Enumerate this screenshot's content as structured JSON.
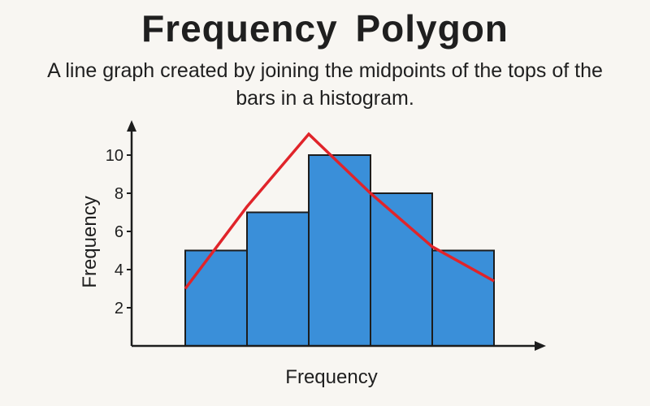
{
  "header": {
    "title": "Frequency  Polygon",
    "subtitle": "A line graph created by joining the midpoints of the tops of the bars in a histogram."
  },
  "chart_data": {
    "type": "bar",
    "title": "Frequency  Polygon",
    "xlabel": "Frequency",
    "ylabel": "Frequency",
    "ylim": [
      0,
      10
    ],
    "yticks": [
      2,
      4,
      6,
      8,
      10
    ],
    "categories": [
      "",
      "",
      "",
      "",
      ""
    ],
    "values": [
      5,
      7,
      10,
      8,
      5
    ],
    "polygon": {
      "x_index": [
        -0.5,
        0.5,
        1.5,
        2.5,
        3.5,
        4.5
      ],
      "values": [
        3,
        7.3,
        11.1,
        8,
        5.2,
        3.4
      ]
    },
    "colors": {
      "bar": "#3a8fd9",
      "bar_edge": "#1d1d1d",
      "line": "#e0242a",
      "axis": "#1d1d1d"
    },
    "grid": false,
    "legend": "none"
  }
}
